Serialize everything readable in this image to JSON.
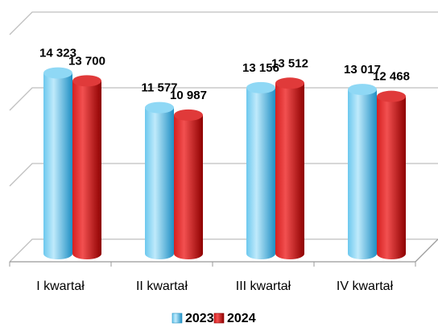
{
  "chart_data": {
    "type": "bar3d",
    "categories": [
      "I kwartał",
      "II kwartał",
      "III kwartał",
      "IV kwartał"
    ],
    "series": [
      {
        "name": "2023",
        "color": "#3aaee0",
        "values": [
          14323,
          11577,
          13156,
          13017
        ],
        "value_labels": [
          "14 323",
          "11 577",
          "13 156",
          "13 017"
        ]
      },
      {
        "name": "2024",
        "color": "#c81010",
        "values": [
          13700,
          10987,
          13512,
          12468
        ],
        "value_labels": [
          "13 700",
          "10 987",
          "13 512",
          "12 468"
        ]
      }
    ],
    "ylim": [
      0,
      18000
    ],
    "yticks": [
      0,
      6000,
      12000,
      18000
    ],
    "grid": true,
    "legend": "bottom"
  }
}
